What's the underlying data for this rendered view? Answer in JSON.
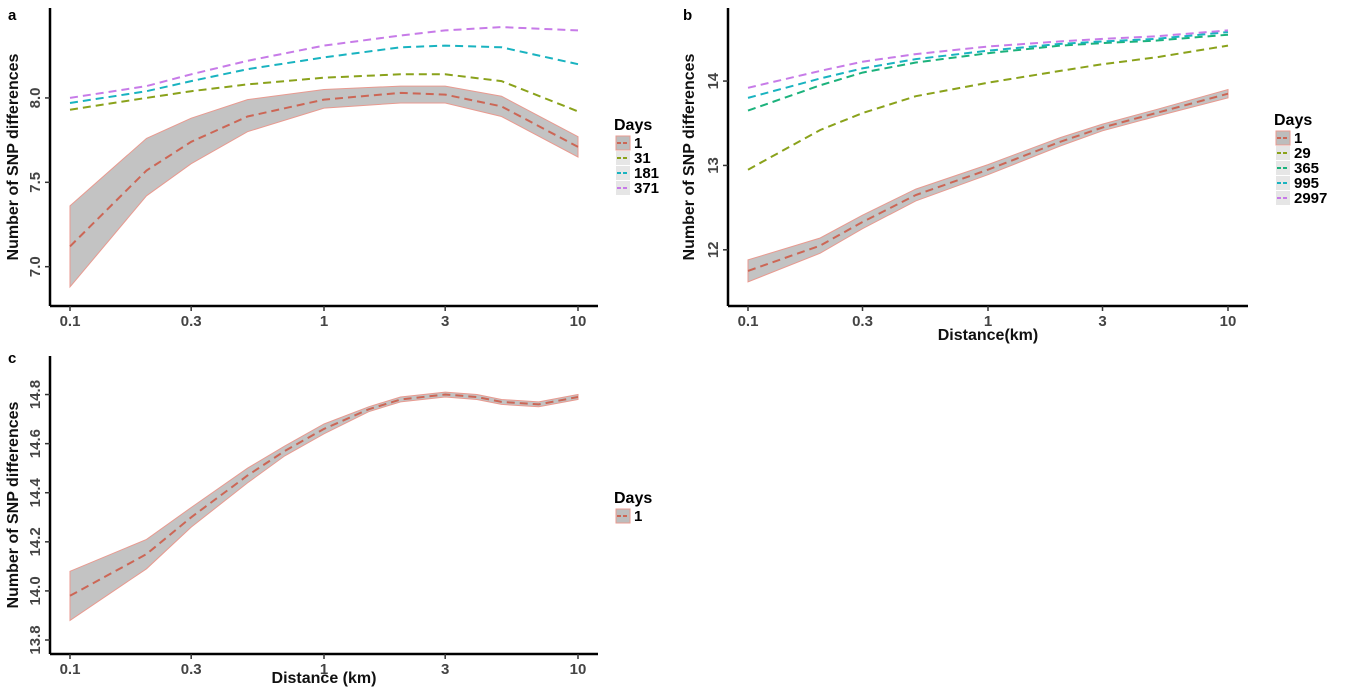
{
  "chart_data": [
    {
      "panel": "a",
      "type": "line",
      "x_scale": "log",
      "xlim": [
        0.1,
        10
      ],
      "ylim": [
        6.85,
        8.45
      ],
      "x_ticks": [
        "0.1",
        "0.3",
        "1",
        "3",
        "10"
      ],
      "y_ticks": [
        "7.0",
        "7.5",
        "8.0"
      ],
      "xlabel": "",
      "ylabel": "Number of SNP differences",
      "legend": {
        "title": "Days",
        "position": "right"
      },
      "series": [
        {
          "name": "1",
          "color": "#cc6655",
          "x": [
            0.1,
            0.2,
            0.3,
            0.5,
            1,
            2,
            3,
            5,
            10
          ],
          "y": [
            7.12,
            7.57,
            7.74,
            7.89,
            7.99,
            8.03,
            8.02,
            7.95,
            7.71
          ],
          "ymin": [
            6.88,
            7.42,
            7.61,
            7.8,
            7.94,
            7.97,
            7.97,
            7.89,
            7.65
          ],
          "ymax": [
            7.36,
            7.76,
            7.88,
            7.99,
            8.05,
            8.07,
            8.07,
            8.01,
            7.77
          ]
        },
        {
          "name": "31",
          "color": "#8aa21b",
          "x": [
            0.1,
            0.2,
            0.3,
            0.5,
            1,
            2,
            3,
            5,
            10
          ],
          "y": [
            7.93,
            8.0,
            8.04,
            8.08,
            8.12,
            8.14,
            8.14,
            8.1,
            7.92
          ]
        },
        {
          "name": "181",
          "color": "#19b3c0",
          "x": [
            0.1,
            0.2,
            0.3,
            0.5,
            1,
            2,
            3,
            5,
            10
          ],
          "y": [
            7.97,
            8.04,
            8.1,
            8.17,
            8.24,
            8.3,
            8.31,
            8.3,
            8.2
          ]
        },
        {
          "name": "371",
          "color": "#c77be8",
          "x": [
            0.1,
            0.2,
            0.3,
            0.5,
            1,
            2,
            3,
            5,
            10
          ],
          "y": [
            8.0,
            8.07,
            8.14,
            8.22,
            8.31,
            8.37,
            8.4,
            8.42,
            8.4
          ]
        }
      ]
    },
    {
      "panel": "b",
      "type": "line",
      "x_scale": "log",
      "xlim": [
        0.1,
        10
      ],
      "ylim": [
        11.5,
        14.7
      ],
      "x_ticks": [
        "0.1",
        "0.3",
        "1",
        "3",
        "10"
      ],
      "y_ticks": [
        "12",
        "13",
        "14"
      ],
      "xlabel": "Distance(km)",
      "ylabel": "Number of SNP differences",
      "legend": {
        "title": "Days",
        "position": "right"
      },
      "series": [
        {
          "name": "1",
          "color": "#cc6655",
          "x": [
            0.1,
            0.2,
            0.3,
            0.5,
            1,
            2,
            3,
            5,
            10
          ],
          "y": [
            11.75,
            12.05,
            12.33,
            12.65,
            12.95,
            13.28,
            13.45,
            13.62,
            13.85
          ],
          "ymin": [
            11.62,
            11.96,
            12.25,
            12.58,
            12.89,
            13.23,
            13.41,
            13.58,
            13.8
          ],
          "ymax": [
            11.88,
            12.14,
            12.41,
            12.72,
            13.01,
            13.33,
            13.49,
            13.66,
            13.9
          ]
        },
        {
          "name": "29",
          "color": "#8aa21b",
          "x": [
            0.1,
            0.2,
            0.3,
            0.5,
            1,
            2,
            3,
            5,
            10
          ],
          "y": [
            12.95,
            13.42,
            13.62,
            13.82,
            13.98,
            14.12,
            14.2,
            14.28,
            14.42
          ]
        },
        {
          "name": "365",
          "color": "#1bb27c",
          "x": [
            0.1,
            0.2,
            0.3,
            0.5,
            1,
            2,
            3,
            5,
            10
          ],
          "y": [
            13.65,
            13.95,
            14.1,
            14.22,
            14.33,
            14.42,
            14.45,
            14.48,
            14.55
          ]
        },
        {
          "name": "995",
          "color": "#19b3c0",
          "x": [
            0.1,
            0.2,
            0.3,
            0.5,
            1,
            2,
            3,
            5,
            10
          ],
          "y": [
            13.8,
            14.03,
            14.15,
            14.26,
            14.36,
            14.44,
            14.47,
            14.5,
            14.58
          ]
        },
        {
          "name": "2997",
          "color": "#c77be8",
          "x": [
            0.1,
            0.2,
            0.3,
            0.5,
            1,
            2,
            3,
            5,
            10
          ],
          "y": [
            13.92,
            14.12,
            14.23,
            14.32,
            14.41,
            14.47,
            14.5,
            14.53,
            14.6
          ]
        }
      ]
    },
    {
      "panel": "c",
      "type": "line",
      "x_scale": "log",
      "xlim": [
        0.1,
        10
      ],
      "ylim": [
        13.8,
        14.9
      ],
      "x_ticks": [
        "0.1",
        "0.3",
        "1",
        "3",
        "10"
      ],
      "y_ticks": [
        "13.8",
        "14.0",
        "14.2",
        "14.4",
        "14.6",
        "14.8"
      ],
      "xlabel": "Distance (km)",
      "ylabel": "Number of SNP differences",
      "legend": {
        "title": "Days",
        "position": "right"
      },
      "series": [
        {
          "name": "1",
          "color": "#cc6655",
          "x": [
            0.1,
            0.2,
            0.3,
            0.5,
            0.7,
            1,
            1.5,
            2,
            3,
            4,
            5,
            7,
            10
          ],
          "y": [
            13.98,
            14.15,
            14.3,
            14.47,
            14.57,
            14.66,
            14.74,
            14.78,
            14.8,
            14.79,
            14.77,
            14.76,
            14.79
          ],
          "ymin": [
            13.88,
            14.09,
            14.26,
            14.44,
            14.55,
            14.64,
            14.73,
            14.77,
            14.79,
            14.78,
            14.76,
            14.75,
            14.78
          ],
          "ymax": [
            14.08,
            14.21,
            14.34,
            14.5,
            14.59,
            14.68,
            14.75,
            14.79,
            14.81,
            14.8,
            14.78,
            14.77,
            14.8
          ]
        }
      ]
    }
  ]
}
